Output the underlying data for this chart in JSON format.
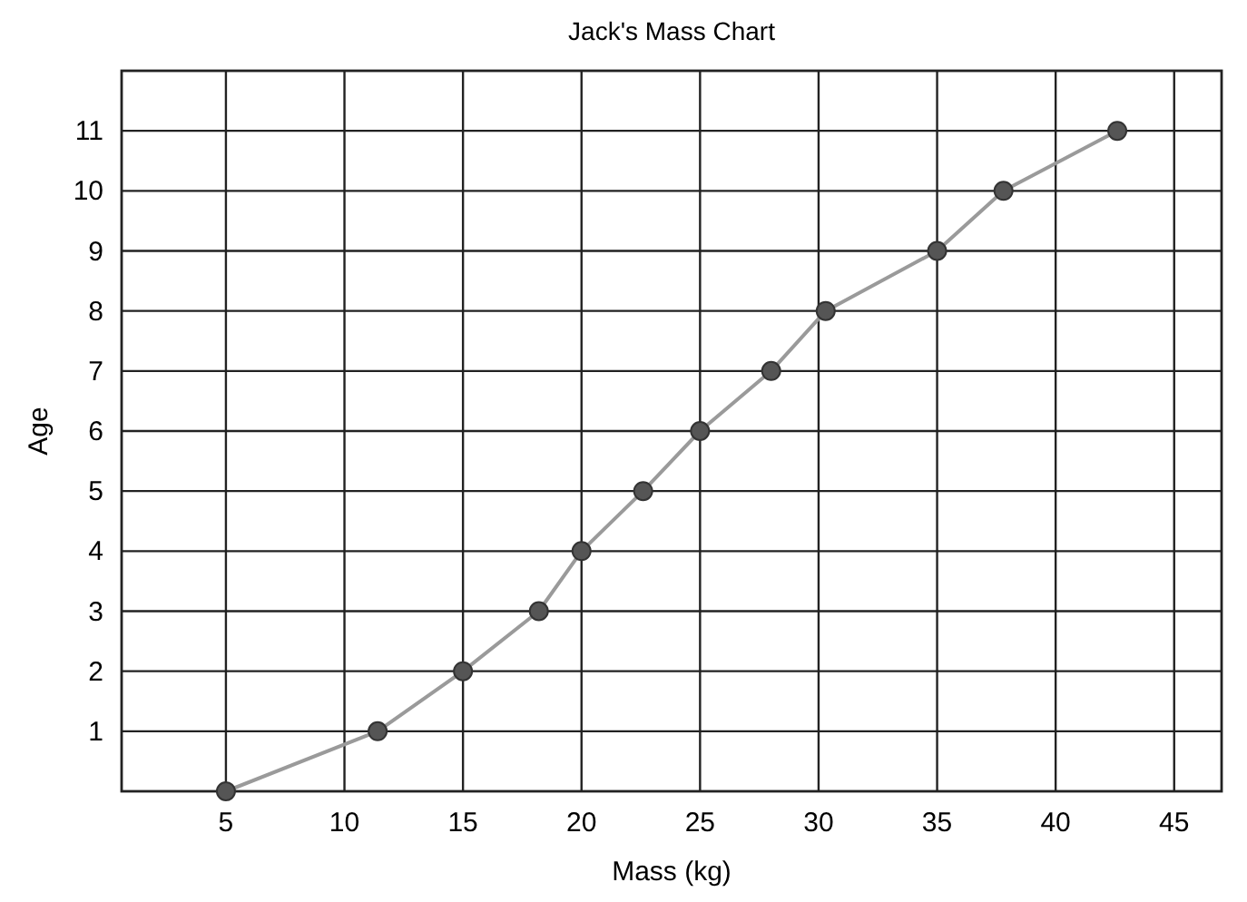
{
  "chart_data": {
    "type": "line",
    "title": "Jack's Mass Chart",
    "xlabel": "Mass (kg)",
    "ylabel": "Age",
    "x": [
      5,
      11.4,
      15,
      18.2,
      20,
      22.6,
      25,
      28,
      30.3,
      35,
      37.8,
      42.6
    ],
    "series": [
      {
        "color": "#9a9a9a",
        "values": [
          0,
          1,
          2,
          3,
          4,
          5,
          6,
          7,
          8,
          9,
          10,
          11
        ]
      }
    ],
    "xlim": [
      0.6,
      47
    ],
    "xticks": [
      5,
      10,
      15,
      20,
      25,
      30,
      35,
      40,
      45
    ],
    "ylim": [
      0,
      12
    ],
    "yticks": [
      1,
      2,
      3,
      4,
      5,
      6,
      7,
      8,
      9,
      10,
      11
    ],
    "grid": true,
    "marker": "circle",
    "line_style": "solid"
  }
}
